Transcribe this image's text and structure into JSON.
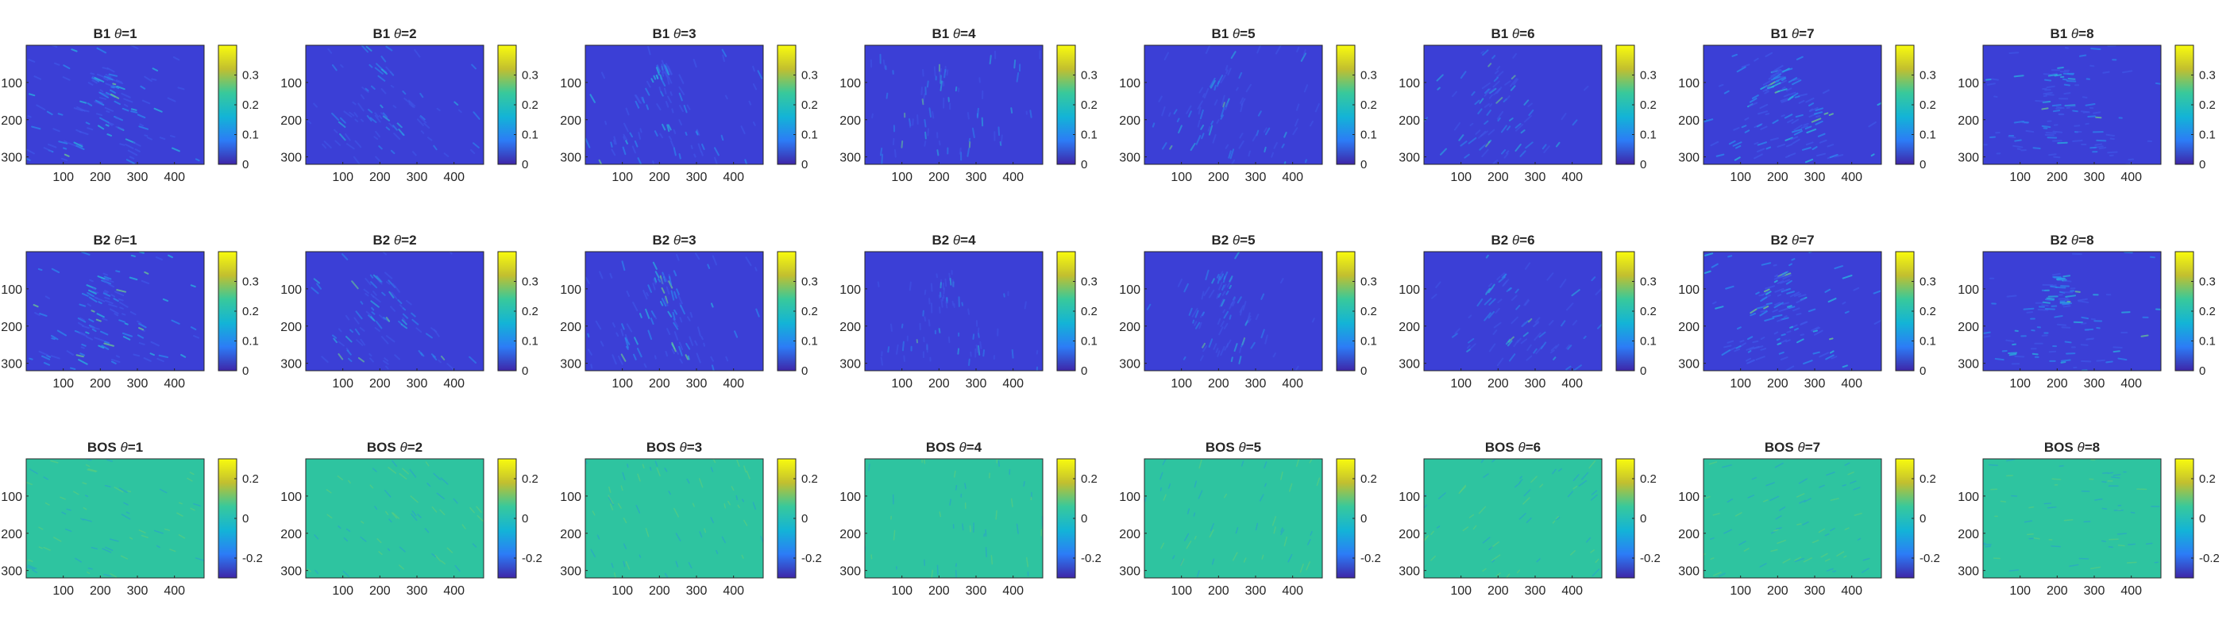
{
  "chart_data": {
    "type": "heatmap",
    "layout": {
      "rows": 3,
      "cols": 8
    },
    "x_ticks": [
      100,
      200,
      300,
      400
    ],
    "y_ticks": [
      100,
      200,
      300
    ],
    "xlim": [
      0,
      480
    ],
    "ylim": [
      320,
      0
    ],
    "grid": false,
    "rows": [
      {
        "row_label": "B1",
        "colorbar": {
          "min": 0,
          "max": 0.4,
          "ticks": [
            0,
            0.1,
            0.2,
            0.3
          ],
          "tick_labels": [
            "0",
            "0.1",
            "0.2",
            "0.3"
          ],
          "colormap": "parula"
        },
        "panels": [
          {
            "title_prefix": "B1",
            "title_suffix": "=1",
            "theta": 1,
            "intensity": 0.55
          },
          {
            "title_prefix": "B1",
            "title_suffix": "=2",
            "theta": 2,
            "intensity": 0.35
          },
          {
            "title_prefix": "B1",
            "title_suffix": "=3",
            "theta": 3,
            "intensity": 0.45
          },
          {
            "title_prefix": "B1",
            "title_suffix": "=4",
            "theta": 4,
            "intensity": 0.25
          },
          {
            "title_prefix": "B1",
            "title_suffix": "=5",
            "theta": 5,
            "intensity": 0.3
          },
          {
            "title_prefix": "B1",
            "title_suffix": "=6",
            "theta": 6,
            "intensity": 0.3
          },
          {
            "title_prefix": "B1",
            "title_suffix": "=7",
            "theta": 7,
            "intensity": 0.6
          },
          {
            "title_prefix": "B1",
            "title_suffix": "=8",
            "theta": 8,
            "intensity": 0.5
          }
        ]
      },
      {
        "row_label": "B2",
        "colorbar": {
          "min": 0,
          "max": 0.4,
          "ticks": [
            0,
            0.1,
            0.2,
            0.3
          ],
          "tick_labels": [
            "0",
            "0.1",
            "0.2",
            "0.3"
          ],
          "colormap": "parula"
        },
        "panels": [
          {
            "title_prefix": "B2",
            "title_suffix": "=1",
            "theta": 1,
            "intensity": 0.55
          },
          {
            "title_prefix": "B2",
            "title_suffix": "=2",
            "theta": 2,
            "intensity": 0.35
          },
          {
            "title_prefix": "B2",
            "title_suffix": "=3",
            "theta": 3,
            "intensity": 0.45
          },
          {
            "title_prefix": "B2",
            "title_suffix": "=4",
            "theta": 4,
            "intensity": 0.25
          },
          {
            "title_prefix": "B2",
            "title_suffix": "=5",
            "theta": 5,
            "intensity": 0.3
          },
          {
            "title_prefix": "B2",
            "title_suffix": "=6",
            "theta": 6,
            "intensity": 0.3
          },
          {
            "title_prefix": "B2",
            "title_suffix": "=7",
            "theta": 7,
            "intensity": 0.6
          },
          {
            "title_prefix": "B2",
            "title_suffix": "=8",
            "theta": 8,
            "intensity": 0.5
          }
        ]
      },
      {
        "row_label": "BOS",
        "colorbar": {
          "min": -0.3,
          "max": 0.3,
          "ticks": [
            -0.2,
            0,
            0.2
          ],
          "tick_labels": [
            "-0.2",
            "0",
            "0.2"
          ],
          "colormap": "parula"
        },
        "panels": [
          {
            "title_prefix": "BOS",
            "title_suffix": "=1",
            "theta": 1,
            "intensity": 0.15
          },
          {
            "title_prefix": "BOS",
            "title_suffix": "=2",
            "theta": 2,
            "intensity": 0.1
          },
          {
            "title_prefix": "BOS",
            "title_suffix": "=3",
            "theta": 3,
            "intensity": 0.12
          },
          {
            "title_prefix": "BOS",
            "title_suffix": "=4",
            "theta": 4,
            "intensity": 0.02
          },
          {
            "title_prefix": "BOS",
            "title_suffix": "=5",
            "theta": 5,
            "intensity": 0.05
          },
          {
            "title_prefix": "BOS",
            "title_suffix": "=6",
            "theta": 6,
            "intensity": 0.1
          },
          {
            "title_prefix": "BOS",
            "title_suffix": "=7",
            "theta": 7,
            "intensity": 0.15
          },
          {
            "title_prefix": "BOS",
            "title_suffix": "=8",
            "theta": 8,
            "intensity": 0.12
          }
        ]
      }
    ],
    "colors": {
      "low_bg": "#3b3fd6",
      "bos_bg": "#2ec4a0",
      "axis": "#262626",
      "tick_text": "#262626"
    },
    "theta_symbol": "θ"
  }
}
